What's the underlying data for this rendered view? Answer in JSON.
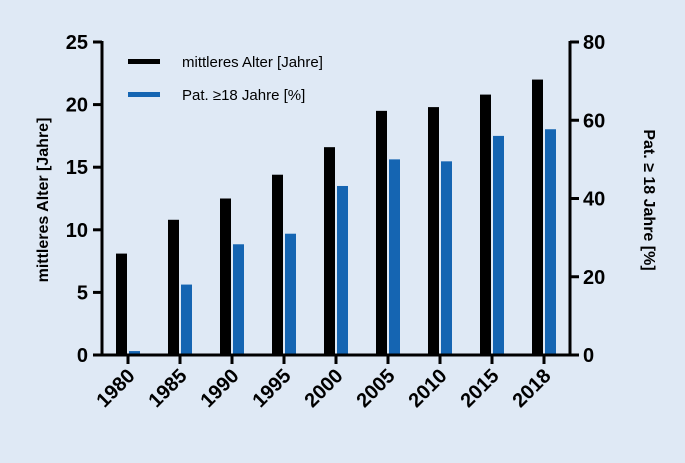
{
  "chart_data": {
    "type": "bar",
    "categories": [
      "1980",
      "1985",
      "1990",
      "1995",
      "2000",
      "2005",
      "2010",
      "2015",
      "2018"
    ],
    "series": [
      {
        "name": "mittleres Alter [Jahre]",
        "axis": "left",
        "color": "#000000",
        "values": [
          8.1,
          10.8,
          12.5,
          14.4,
          16.6,
          19.5,
          19.8,
          20.8,
          22.0
        ]
      },
      {
        "name": "Pat. ≥18 Jahre [%]",
        "axis": "right",
        "color": "#1565b2",
        "values": [
          1,
          18,
          28.3,
          31,
          43.2,
          50,
          49.5,
          56,
          57.7
        ]
      }
    ],
    "ylabel_left": "mittleres Alter [Jahre]",
    "ylabel_right": "Pat. ≥ 18 Jahre [%]",
    "ylim_left": [
      0,
      25
    ],
    "yticks_left": [
      "0",
      "5",
      "10",
      "15",
      "20",
      "25"
    ],
    "ylim_right": [
      0,
      80
    ],
    "yticks_right": [
      "0",
      "20",
      "40",
      "60",
      "80"
    ],
    "grid": false,
    "legend_position": "top-left"
  }
}
